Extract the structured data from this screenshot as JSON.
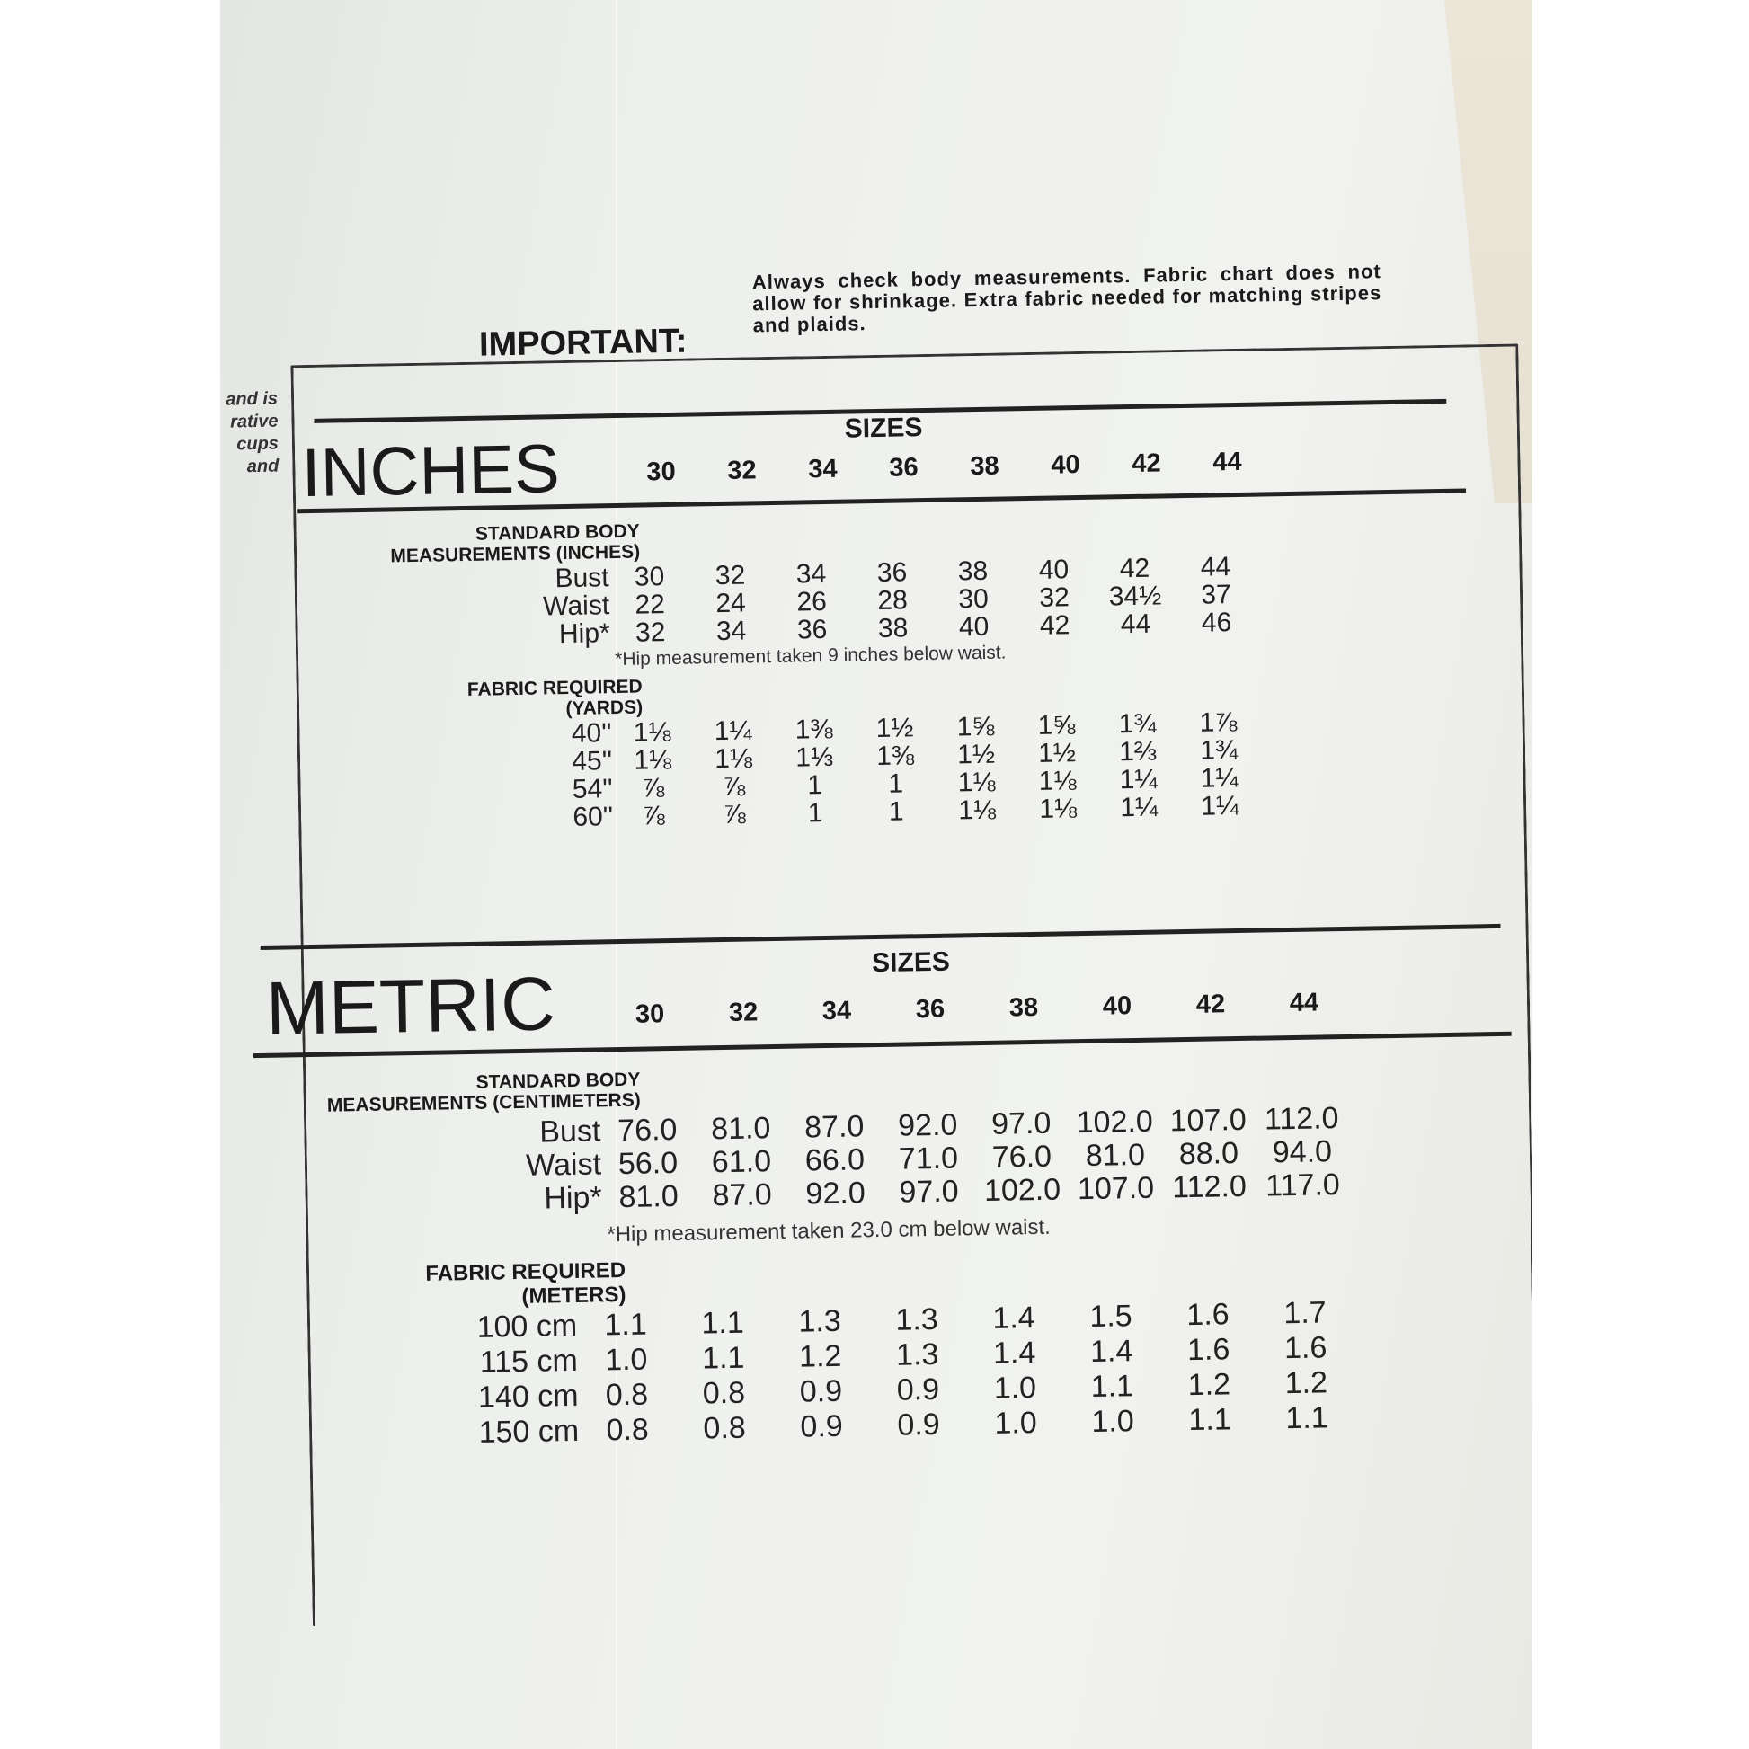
{
  "side_text": [
    "and is",
    "rative",
    "cups",
    "and"
  ],
  "important": {
    "label": "IMPORTANT:",
    "text": "Always check body measurements. Fabric chart does not allow for shrinkage. Extra fabric needed for matching stripes and plaids."
  },
  "inches": {
    "title": "INCHES",
    "sizes_label": "SIZES",
    "sizes": [
      "30",
      "32",
      "34",
      "36",
      "38",
      "40",
      "42",
      "44"
    ],
    "body_heading": [
      "STANDARD BODY",
      "MEASUREMENTS (INCHES)"
    ],
    "body_rows": [
      {
        "label": "Bust",
        "values": [
          "30",
          "32",
          "34",
          "36",
          "38",
          "40",
          "42",
          "44"
        ]
      },
      {
        "label": "Waist",
        "values": [
          "22",
          "24",
          "26",
          "28",
          "30",
          "32",
          "34½",
          "37"
        ]
      },
      {
        "label": "Hip*",
        "values": [
          "32",
          "34",
          "36",
          "38",
          "40",
          "42",
          "44",
          "46"
        ]
      }
    ],
    "note": "*Hip measurement taken 9 inches below waist.",
    "fabric_heading": [
      "FABRIC REQUIRED",
      "(YARDS)"
    ],
    "fabric_rows": [
      {
        "label": "40''",
        "values": [
          "1⅛",
          "1¼",
          "1⅜",
          "1½",
          "1⅝",
          "1⅝",
          "1¾",
          "1⅞"
        ]
      },
      {
        "label": "45''",
        "values": [
          "1⅛",
          "1⅛",
          "1⅓",
          "1⅜",
          "1½",
          "1½",
          "1⅔",
          "1¾"
        ]
      },
      {
        "label": "54''",
        "values": [
          "⅞",
          "⅞",
          "1",
          "1",
          "1⅛",
          "1⅛",
          "1¼",
          "1¼"
        ]
      },
      {
        "label": "60''",
        "values": [
          "⅞",
          "⅞",
          "1",
          "1",
          "1⅛",
          "1⅛",
          "1¼",
          "1¼"
        ]
      }
    ]
  },
  "metric": {
    "title": "METRIC",
    "sizes_label": "SIZES",
    "sizes": [
      "30",
      "32",
      "34",
      "36",
      "38",
      "40",
      "42",
      "44"
    ],
    "body_heading": [
      "STANDARD BODY",
      "MEASUREMENTS (CENTIMETERS)"
    ],
    "body_rows": [
      {
        "label": "Bust",
        "values": [
          "76.0",
          "81.0",
          "87.0",
          "92.0",
          "97.0",
          "102.0",
          "107.0",
          "112.0"
        ]
      },
      {
        "label": "Waist",
        "values": [
          "56.0",
          "61.0",
          "66.0",
          "71.0",
          "76.0",
          "81.0",
          "88.0",
          "94.0"
        ]
      },
      {
        "label": "Hip*",
        "values": [
          "81.0",
          "87.0",
          "92.0",
          "97.0",
          "102.0",
          "107.0",
          "112.0",
          "117.0"
        ]
      }
    ],
    "note": "*Hip measurement taken 23.0 cm below waist.",
    "fabric_heading": [
      "FABRIC REQUIRED",
      "(METERS)"
    ],
    "fabric_rows": [
      {
        "label": "100 cm",
        "values": [
          "1.1",
          "1.1",
          "1.3",
          "1.3",
          "1.4",
          "1.5",
          "1.6",
          "1.7"
        ]
      },
      {
        "label": "115 cm",
        "values": [
          "1.0",
          "1.1",
          "1.2",
          "1.3",
          "1.4",
          "1.4",
          "1.6",
          "1.6"
        ]
      },
      {
        "label": "140 cm",
        "values": [
          "0.8",
          "0.8",
          "0.9",
          "0.9",
          "1.0",
          "1.1",
          "1.2",
          "1.2"
        ]
      },
      {
        "label": "150 cm",
        "values": [
          "0.8",
          "0.8",
          "0.9",
          "0.9",
          "1.0",
          "1.0",
          "1.1",
          "1.1"
        ]
      }
    ]
  }
}
